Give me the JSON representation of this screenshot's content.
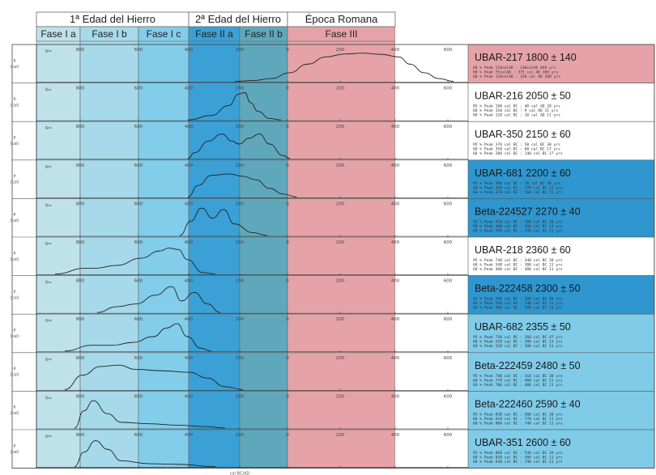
{
  "chart_data": {
    "type": "line",
    "title": "",
    "xlabel": "cal BC/AD",
    "ylabel": "P (cal)",
    "periods": [
      {
        "name": "1ª Edad del Hierro",
        "phases": [
          {
            "name": "Fase I a",
            "color": "#bfe1ea"
          },
          {
            "name": "Fase I b",
            "color": "#a6d9ea"
          },
          {
            "name": "Fase I c",
            "color": "#82cde9"
          }
        ]
      },
      {
        "name": "2ª Edad del Hierro",
        "phases": [
          {
            "name": "Fase II a",
            "color": "#3aa0d6"
          },
          {
            "name": "Fase II b",
            "color": "#5fa8bc"
          }
        ]
      },
      {
        "name": "Época Romana",
        "phases": [
          {
            "name": "Fase III",
            "color": "#e5a3a7"
          }
        ]
      }
    ],
    "samples": [
      {
        "label": "UBAR-217 1800 ± 140",
        "color": "#e5a3a7",
        "tick_labels": [
          "800",
          "600",
          "400",
          "200",
          "0",
          "200",
          "400",
          "600"
        ],
        "curve": [
          [
            0,
            0
          ],
          [
            50,
            0.03
          ],
          [
            100,
            0.1
          ],
          [
            150,
            0.3
          ],
          [
            200,
            0.6
          ],
          [
            250,
            0.85
          ],
          [
            300,
            0.95
          ],
          [
            350,
            0.98
          ],
          [
            400,
            0.94
          ],
          [
            450,
            0.85
          ],
          [
            480,
            0.6
          ],
          [
            520,
            0.3
          ],
          [
            560,
            0.1
          ],
          [
            600,
            0
          ]
        ],
        "stats": [
          [
            "68 % Peak",
            "110calAD :",
            "330calAD",
            "840 yrs"
          ],
          [
            "68 % Peak",
            "75calAD :",
            "375 cal AD",
            "300 yrs"
          ],
          [
            "68 % Peak",
            "120calAD :",
            "320 cal AD",
            "200 yrs"
          ]
        ]
      },
      {
        "label": "UBAR-216 2050 ± 50",
        "color": "#ffffff",
        "tick_labels": [
          "800",
          "600",
          "400",
          "200",
          "0",
          "200",
          "400",
          "600"
        ],
        "curve": [
          [
            0,
            0
          ],
          [
            80,
            0.15
          ],
          [
            140,
            0.5
          ],
          [
            175,
            0.9
          ],
          [
            195,
            0.95
          ],
          [
            215,
            0.6
          ],
          [
            240,
            0.3
          ],
          [
            280,
            0.05
          ],
          [
            320,
            0
          ]
        ],
        "stats": [
          [
            "95 % Peak",
            "190",
            "cal BC :",
            "40 cal AD",
            "20 yrs"
          ],
          [
            "68 % Peak",
            "150",
            "cal BC :",
            "9 cal AD",
            "11 yrs"
          ],
          [
            "68 % Peak",
            "120",
            "cal BC :",
            "10 cal AD",
            "11 yrs"
          ]
        ]
      },
      {
        "label": "UBAR-350 2150 ± 60",
        "color": "#ffffff",
        "tick_labels": [
          "800",
          "600",
          "400",
          "200",
          "0",
          "200",
          "400",
          "600"
        ],
        "curve": [
          [
            0,
            0
          ],
          [
            20,
            0.2
          ],
          [
            60,
            0.6
          ],
          [
            100,
            0.85
          ],
          [
            130,
            0.6
          ],
          [
            150,
            0.5
          ],
          [
            180,
            0.7
          ],
          [
            210,
            0.85
          ],
          [
            240,
            0.5
          ],
          [
            280,
            0.1
          ],
          [
            300,
            0
          ]
        ],
        "stats": [
          [
            "95 % Peak",
            "370",
            "cal BC :",
            "50 cal BC",
            "30 yrs"
          ],
          [
            "68 % Peak",
            "350",
            "cal BC :",
            "60 cal BC",
            "17 yrs"
          ],
          [
            "68 % Peak",
            "200",
            "cal BC :",
            "140 cal BC",
            "17 yrs"
          ]
        ]
      },
      {
        "label": "UBAR-681 2200 ± 60",
        "color": "#2f96cf",
        "tick_labels": [
          "800",
          "600",
          "400",
          "200",
          "0",
          "200",
          "400",
          "600"
        ],
        "curve": [
          [
            0,
            0
          ],
          [
            30,
            0.4
          ],
          [
            70,
            0.75
          ],
          [
            120,
            0.8
          ],
          [
            160,
            0.72
          ],
          [
            200,
            0.6
          ],
          [
            240,
            0.3
          ],
          [
            280,
            0.1
          ],
          [
            320,
            0
          ]
        ],
        "stats": [
          [
            "95 % Peak",
            "380",
            "cal BC :",
            "70 cal BC",
            "30 yrs"
          ],
          [
            "68 % Peak",
            "390",
            "cal BC :",
            "170 cal BC",
            "11 yrs"
          ],
          [
            "68 % Peak",
            "370",
            "cal BC :",
            "160 cal BC",
            "11 yrs"
          ]
        ]
      },
      {
        "label": "Beta-224527 2270 ± 40",
        "color": "#2f96cf",
        "tick_labels": [
          "800",
          "600",
          "400",
          "200",
          "0",
          "200",
          "400",
          "600"
        ],
        "curve": [
          [
            0,
            0
          ],
          [
            30,
            0.5
          ],
          [
            60,
            0.95
          ],
          [
            90,
            0.6
          ],
          [
            120,
            0.9
          ],
          [
            150,
            0.4
          ],
          [
            200,
            0.1
          ],
          [
            240,
            0
          ]
        ],
        "stats": [
          [
            "95 % Peak",
            "410",
            "cal BC :",
            "200 cal BC",
            "20 yrs"
          ],
          [
            "68 % Peak",
            "400",
            "cal BC :",
            "360 cal BC",
            "11 yrs"
          ],
          [
            "68 % Peak",
            "290",
            "cal BC :",
            "230 cal BC",
            "11 yrs"
          ]
        ]
      },
      {
        "label": "UBAR-218 2360 ± 60",
        "color": "#ffffff",
        "tick_labels": [
          "800",
          "600",
          "400",
          "200",
          "0",
          "200",
          "400",
          "600"
        ],
        "curve": [
          [
            0,
            0
          ],
          [
            100,
            0.2
          ],
          [
            130,
            0.2
          ],
          [
            200,
            0.3
          ],
          [
            280,
            0.55
          ],
          [
            340,
            0.8
          ],
          [
            370,
            0.9
          ],
          [
            400,
            0.85
          ],
          [
            430,
            0.5
          ],
          [
            480,
            0.05
          ],
          [
            520,
            0
          ]
        ],
        "stats": [
          [
            "95 % Peak",
            "740",
            "cal BC :",
            "340 cal BC",
            "30 yrs"
          ],
          [
            "68 % Peak",
            "540",
            "cal BC :",
            "380 cal BC",
            "11 yrs"
          ],
          [
            "68 % Peak",
            "400",
            "cal BC :",
            "400 cal BC",
            "11 yrs"
          ]
        ]
      },
      {
        "label": "Beta-222458 2300 ± 50",
        "color": "#2f96cf",
        "tick_labels": [
          "800",
          "600",
          "400",
          "200",
          "0",
          "200",
          "400",
          "600"
        ],
        "curve": [
          [
            0,
            0
          ],
          [
            60,
            0.2
          ],
          [
            120,
            0.3
          ],
          [
            180,
            0.6
          ],
          [
            230,
            0.9
          ],
          [
            260,
            0.4
          ],
          [
            300,
            0.7
          ],
          [
            340,
            0.3
          ],
          [
            380,
            0
          ]
        ],
        "stats": [
          [
            "95 % Peak",
            "500",
            "cal BC :",
            "200 cal BC",
            "30 yrs"
          ],
          [
            "68 % Peak",
            "500",
            "cal BC :",
            "240 cal BC",
            "11 yrs"
          ],
          [
            "68 % Peak",
            "500",
            "cal BC :",
            "390 cal BC",
            "11 yrs"
          ]
        ]
      },
      {
        "label": "UBAR-682 2355 ± 50",
        "color": "#7fcbe8",
        "tick_labels": [
          "800",
          "600",
          "400",
          "200",
          "0",
          "200",
          "400",
          "600"
        ],
        "curve": [
          [
            0,
            0
          ],
          [
            80,
            0.2
          ],
          [
            140,
            0.2
          ],
          [
            200,
            0.3
          ],
          [
            260,
            0.5
          ],
          [
            300,
            0.8
          ],
          [
            330,
            0.95
          ],
          [
            360,
            0.5
          ],
          [
            400,
            0.1
          ],
          [
            430,
            0
          ]
        ],
        "stats": [
          [
            "95 % Peak",
            "730",
            "cal BC :",
            "260 cal BC",
            "47 yrs"
          ],
          [
            "68 % Peak",
            "520",
            "cal BC :",
            "380 cal BC",
            "13 yrs"
          ],
          [
            "68 % Peak",
            "520",
            "cal BC :",
            "380 cal BC",
            "11 yrs"
          ]
        ]
      },
      {
        "label": "Beta-222459 2480 ± 50",
        "color": "#7fcbe8",
        "tick_labels": [
          "800",
          "600",
          "400",
          "200",
          "0",
          "200",
          "400",
          "600"
        ],
        "curve": [
          [
            0,
            0
          ],
          [
            40,
            0.5
          ],
          [
            80,
            0.8
          ],
          [
            120,
            0.85
          ],
          [
            160,
            0.7
          ],
          [
            220,
            0.65
          ],
          [
            280,
            0.6
          ],
          [
            320,
            0.4
          ],
          [
            360,
            0.1
          ],
          [
            400,
            0
          ]
        ],
        "stats": [
          [
            "95 % Peak",
            "780",
            "cal BC :",
            "410 cal BC",
            "30 yrs"
          ],
          [
            "68 % Peak",
            "770",
            "cal BC :",
            "480 cal BC",
            "11 yrs"
          ],
          [
            "68 % Peak",
            "700",
            "cal BC :",
            "480 cal BC",
            "11 yrs"
          ]
        ]
      },
      {
        "label": "Beta-222460 2590 ± 40",
        "color": "#7fcbe8",
        "tick_labels": [
          "800",
          "600",
          "400",
          "200",
          "0",
          "200",
          "400",
          "600"
        ],
        "curve": [
          [
            0,
            0
          ],
          [
            20,
            0.6
          ],
          [
            40,
            0.95
          ],
          [
            70,
            0.5
          ],
          [
            100,
            0.2
          ],
          [
            160,
            0.15
          ],
          [
            220,
            0.1
          ],
          [
            280,
            0.05
          ],
          [
            320,
            0
          ]
        ],
        "stats": [
          [
            "95 % Peak",
            "830",
            "cal BC :",
            "580 cal BC",
            "30 yrs"
          ],
          [
            "68 % Peak",
            "810",
            "cal BC :",
            "770 cal BC",
            "11 yrs"
          ],
          [
            "68 % Peak",
            "800",
            "cal BC :",
            "740 cal BC",
            "11 yrs"
          ]
        ]
      },
      {
        "label": "UBAR-351 2600 ± 60",
        "color": "#7fcbe8",
        "tick_labels": [
          "800",
          "600",
          "400",
          "200",
          "0",
          "200",
          "400",
          "600"
        ],
        "curve": [
          [
            0,
            0
          ],
          [
            20,
            0.5
          ],
          [
            45,
            0.9
          ],
          [
            70,
            0.6
          ],
          [
            100,
            0.2
          ],
          [
            160,
            0.1
          ],
          [
            220,
            0.08
          ],
          [
            300,
            0
          ]
        ],
        "stats": [
          [
            "95 % Peak",
            "860",
            "cal BC :",
            "540 cal BC",
            "39 yrs"
          ],
          [
            "68 % Peak",
            "810",
            "cal BC :",
            "580 cal BC",
            "11 yrs"
          ],
          [
            "68 % Peak",
            "640",
            "cal BC :",
            "740 cal BC",
            "11 yrs"
          ]
        ]
      }
    ]
  }
}
